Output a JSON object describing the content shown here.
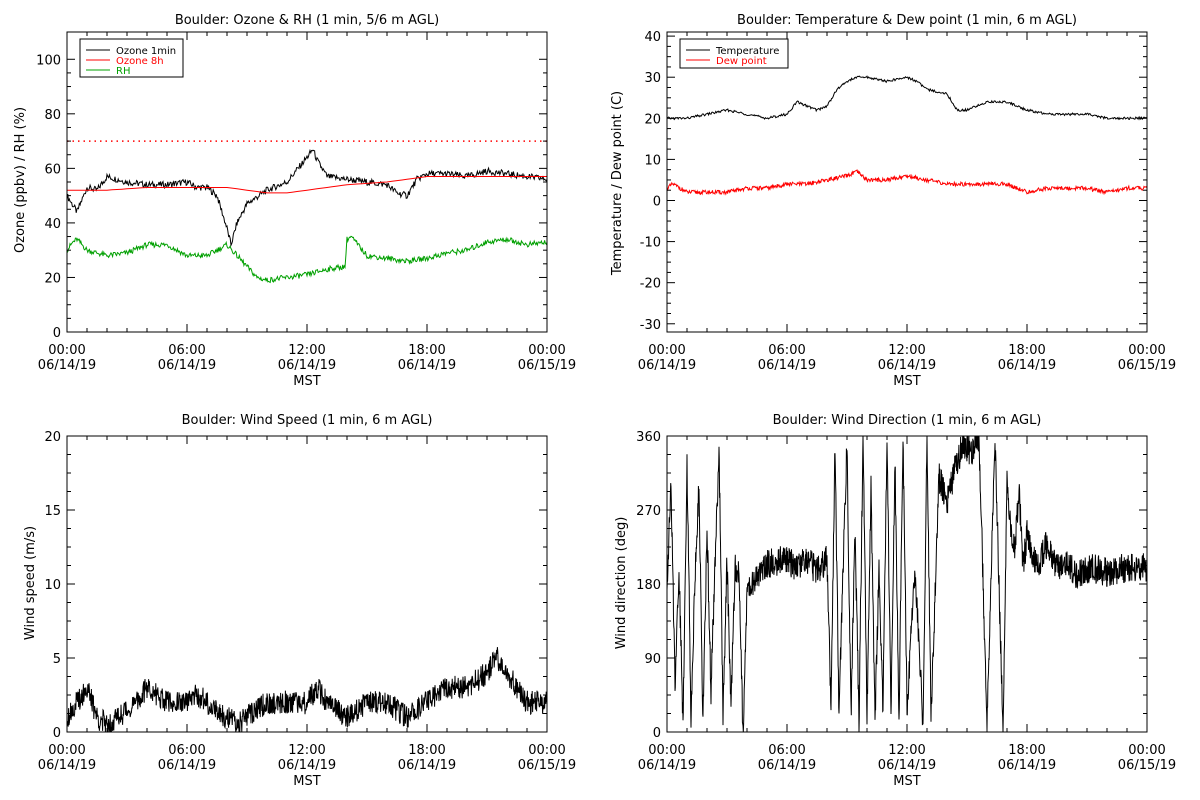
{
  "chart_data": [
    {
      "type": "line",
      "title": "Boulder: Ozone & RH (1 min, 5/6 m AGL)",
      "xlabel": "MST",
      "ylabel": "Ozone (ppbv) / RH (%)",
      "x_ticks": [
        {
          "time": "00:00",
          "date": "06/14/19"
        },
        {
          "time": "06:00",
          "date": "06/14/19"
        },
        {
          "time": "12:00",
          "date": "06/14/19"
        },
        {
          "time": "18:00",
          "date": "06/14/19"
        },
        {
          "time": "00:00",
          "date": "06/15/19"
        }
      ],
      "xlim_hours": [
        0,
        24
      ],
      "ylim": [
        0,
        110
      ],
      "y_ticks": [
        "0",
        "20",
        "40",
        "60",
        "80",
        "100"
      ],
      "y_tick_values": [
        0,
        20,
        40,
        60,
        80,
        100
      ],
      "reference_line": {
        "value": 70,
        "style": "dotted",
        "color": "#ff0000"
      },
      "legend": {
        "placement": "top-left",
        "entries": [
          {
            "name": "Ozone 1min",
            "color": "#000000"
          },
          {
            "name": "Ozone 8h",
            "color": "#ff0000"
          },
          {
            "name": "RH",
            "color": "#00a000"
          }
        ]
      },
      "series": [
        {
          "name": "Ozone 1min",
          "color": "#000000",
          "x": [
            0,
            0.5,
            1,
            1.5,
            2,
            3,
            4,
            5,
            6,
            6.5,
            7,
            7.5,
            8,
            8.2,
            8.5,
            9,
            10,
            11,
            12,
            12.3,
            12.5,
            13,
            14,
            15,
            16,
            16.5,
            17,
            17.5,
            18,
            19,
            20,
            21,
            22,
            23,
            24
          ],
          "y": [
            50,
            44,
            53,
            52,
            57,
            55,
            54,
            54,
            55,
            53,
            53,
            50,
            38,
            32,
            40,
            47,
            52,
            55,
            64,
            67,
            63,
            57,
            56,
            55,
            54,
            51,
            50,
            56,
            58,
            58,
            57,
            59,
            58,
            57,
            56
          ]
        },
        {
          "name": "Ozone 8h",
          "color": "#ff0000",
          "x": [
            0,
            2,
            4,
            6,
            8,
            9,
            10,
            11,
            12,
            13,
            14,
            16,
            18,
            20,
            22,
            24
          ],
          "y": [
            52,
            52,
            53,
            53,
            53,
            52,
            51,
            51,
            52,
            53,
            54,
            55,
            57,
            57,
            57,
            57
          ]
        },
        {
          "name": "RH",
          "color": "#00a000",
          "x": [
            0,
            0.3,
            0.5,
            1,
            2,
            3,
            4,
            5,
            6,
            7,
            7.5,
            8,
            8.5,
            9,
            9.5,
            10,
            11,
            12,
            13,
            13.9,
            14,
            14.2,
            15,
            16,
            17,
            18,
            19,
            20,
            21,
            22,
            23,
            24
          ],
          "y": [
            30,
            33,
            34,
            30,
            28,
            29,
            32,
            32,
            28,
            28,
            30,
            32,
            28,
            24,
            20,
            19,
            20,
            21,
            23,
            24,
            34,
            35,
            28,
            27,
            26,
            27,
            29,
            30,
            33,
            34,
            32,
            33
          ]
        }
      ]
    },
    {
      "type": "line",
      "title": "Boulder: Temperature & Dew point (1 min, 6 m AGL)",
      "xlabel": "MST",
      "ylabel": "Temperature / Dew point (C)",
      "x_ticks": [
        {
          "time": "00:00",
          "date": "06/14/19"
        },
        {
          "time": "06:00",
          "date": "06/14/19"
        },
        {
          "time": "12:00",
          "date": "06/14/19"
        },
        {
          "time": "18:00",
          "date": "06/14/19"
        },
        {
          "time": "00:00",
          "date": "06/15/19"
        }
      ],
      "xlim_hours": [
        0,
        24
      ],
      "ylim": [
        -32,
        41
      ],
      "y_ticks": [
        "-30",
        "-20",
        "-10",
        "0",
        "10",
        "20",
        "30",
        "40"
      ],
      "y_tick_values": [
        -30,
        -20,
        -10,
        0,
        10,
        20,
        30,
        40
      ],
      "legend": {
        "placement": "top-left",
        "entries": [
          {
            "name": "Temperature",
            "color": "#000000"
          },
          {
            "name": "Dew point",
            "color": "#ff0000"
          }
        ]
      },
      "series": [
        {
          "name": "Temperature",
          "color": "#000000",
          "x": [
            0,
            1,
            2,
            3,
            4,
            5,
            6,
            6.5,
            7,
            7.5,
            8,
            8.5,
            9,
            9.5,
            10,
            11,
            12,
            12.5,
            13,
            14,
            14.5,
            15,
            16,
            17,
            17.5,
            18,
            19,
            20,
            21,
            22,
            23,
            24
          ],
          "y": [
            20,
            20,
            21,
            22,
            21,
            20,
            21,
            24,
            23,
            22,
            23,
            27,
            29,
            30,
            30,
            29,
            30,
            29,
            27,
            26,
            22,
            22,
            24,
            24,
            23,
            22,
            21,
            21,
            21,
            20,
            20,
            20
          ]
        },
        {
          "name": "Dew point",
          "color": "#ff0000",
          "x": [
            0,
            0.3,
            1,
            2,
            3,
            4,
            5,
            6,
            7,
            8,
            9,
            9.5,
            10,
            11,
            12,
            13,
            14,
            15,
            16,
            17,
            18,
            19,
            20,
            21,
            22,
            23,
            24
          ],
          "y": [
            3,
            4,
            2,
            2,
            2,
            3,
            3,
            4,
            4,
            5,
            6,
            7,
            5,
            5,
            6,
            5,
            4,
            4,
            4,
            4,
            2,
            3,
            3,
            3,
            2,
            3,
            3
          ]
        }
      ]
    },
    {
      "type": "line",
      "title": "Boulder: Wind Speed (1 min, 6 m AGL)",
      "xlabel": "MST",
      "ylabel": "Wind speed (m/s)",
      "x_ticks": [
        {
          "time": "00:00",
          "date": "06/14/19"
        },
        {
          "time": "06:00",
          "date": "06/14/19"
        },
        {
          "time": "12:00",
          "date": "06/14/19"
        },
        {
          "time": "18:00",
          "date": "06/14/19"
        },
        {
          "time": "00:00",
          "date": "06/15/19"
        }
      ],
      "xlim_hours": [
        0,
        24
      ],
      "ylim": [
        0,
        20
      ],
      "y_ticks": [
        "0",
        "5",
        "10",
        "15",
        "20"
      ],
      "y_tick_values": [
        0,
        5,
        10,
        15,
        20
      ],
      "series": [
        {
          "name": "",
          "color": "#000000",
          "x": [
            0,
            0.5,
            1,
            1.5,
            2,
            3,
            3.5,
            4,
            5,
            6,
            6.5,
            7,
            7.5,
            8,
            8.5,
            9,
            10,
            11,
            12,
            12.5,
            13,
            14,
            15,
            16,
            17,
            17.5,
            18,
            19,
            20,
            21,
            21.5,
            22,
            23,
            24
          ],
          "y": [
            1,
            2,
            3,
            1,
            0.5,
            1.5,
            2,
            3,
            2,
            2,
            2.5,
            2,
            1.5,
            1,
            0.5,
            1,
            2,
            2,
            2,
            3,
            2,
            1,
            2,
            2,
            1,
            1.5,
            2,
            3,
            3,
            4,
            5,
            4,
            2,
            2
          ]
        }
      ]
    },
    {
      "type": "line",
      "title": "Boulder: Wind Direction (1 min, 6 m AGL)",
      "xlabel": "MST",
      "ylabel": "Wind direction (deg)",
      "x_ticks": [
        {
          "time": "00:00",
          "date": "06/14/19"
        },
        {
          "time": "06:00",
          "date": "06/14/19"
        },
        {
          "time": "12:00",
          "date": "06/14/19"
        },
        {
          "time": "18:00",
          "date": "06/14/19"
        },
        {
          "time": "00:00",
          "date": "06/15/19"
        }
      ],
      "xlim_hours": [
        0,
        24
      ],
      "ylim": [
        0,
        360
      ],
      "y_ticks": [
        "0",
        "90",
        "180",
        "270",
        "360"
      ],
      "y_tick_values": [
        0,
        90,
        180,
        270,
        360
      ],
      "series": [
        {
          "name": "",
          "color": "#000000",
          "x": [
            0,
            0.2,
            0.4,
            0.6,
            0.8,
            1,
            1.2,
            1.4,
            1.6,
            1.8,
            2,
            2.2,
            2.4,
            2.6,
            2.8,
            3,
            3.2,
            3.4,
            3.6,
            3.8,
            4,
            5,
            6,
            6.5,
            7,
            7.5,
            8,
            8.2,
            8.4,
            8.6,
            8.8,
            9,
            9.2,
            9.4,
            9.6,
            9.8,
            10,
            10.2,
            10.4,
            10.6,
            10.8,
            11,
            11.2,
            11.4,
            11.6,
            11.8,
            12,
            12.4,
            12.8,
            13,
            13.2,
            13.6,
            14,
            14.4,
            14.8,
            15.2,
            15.6,
            16,
            16.4,
            16.8,
            17,
            17.2,
            17.4,
            17.6,
            17.8,
            18,
            18.5,
            19,
            19.5,
            20,
            20.5,
            21,
            22,
            23,
            24
          ],
          "y": [
            180,
            300,
            60,
            200,
            10,
            330,
            20,
            190,
            300,
            10,
            250,
            50,
            200,
            350,
            20,
            210,
            30,
            200,
            190,
            0,
            170,
            205,
            210,
            200,
            210,
            195,
            210,
            30,
            350,
            20,
            200,
            350,
            20,
            250,
            10,
            360,
            20,
            300,
            10,
            200,
            30,
            360,
            20,
            330,
            20,
            360,
            30,
            200,
            10,
            360,
            20,
            310,
            280,
            320,
            350,
            340,
            360,
            10,
            360,
            0,
            300,
            250,
            220,
            300,
            200,
            240,
            200,
            230,
            200,
            210,
            190,
            200,
            195,
            200,
            200
          ]
        }
      ]
    }
  ]
}
